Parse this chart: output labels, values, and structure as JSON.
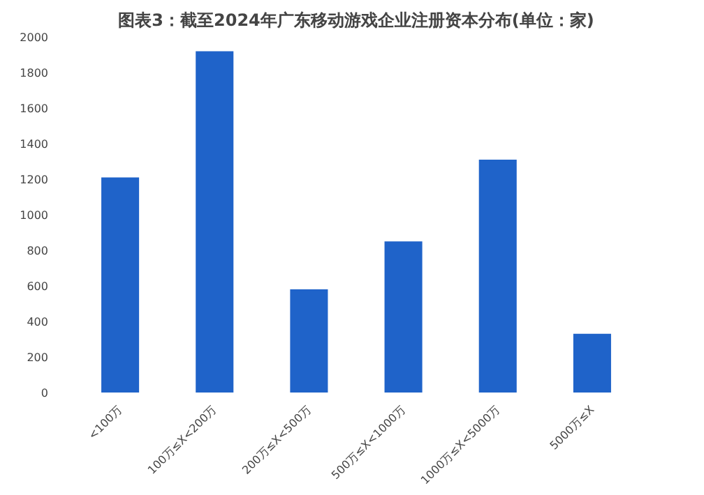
{
  "chart_data": {
    "type": "bar",
    "title": "图表3：截至2024年广东移动游戏企业注册资本分布(单位：家)",
    "categories": [
      "<100万",
      "100万≤X<200万",
      "200万≤X<500万",
      "500万≤X<1000万",
      "1000万≤X<5000万",
      "5000万≤X"
    ],
    "values": [
      1210,
      1920,
      580,
      850,
      1310,
      330
    ],
    "color": "#1f63c9",
    "ylim": [
      0,
      2000
    ],
    "yticks": [
      0,
      200,
      400,
      600,
      800,
      1000,
      1200,
      1400,
      1600,
      1800,
      2000
    ],
    "grid": false
  }
}
